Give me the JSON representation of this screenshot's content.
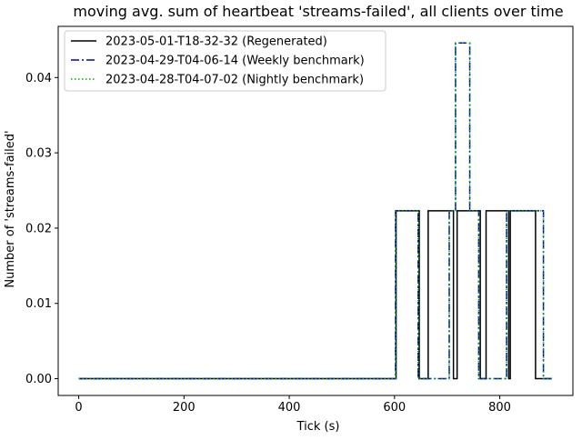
{
  "chart_data": {
    "type": "line",
    "title": "moving avg. sum of heartbeat 'streams-failed', all clients over time",
    "xlabel": "Tick (s)",
    "ylabel": "Number of 'streams-failed'",
    "xlim": [
      -39,
      939
    ],
    "ylim": [
      -0.00223,
      0.0468
    ],
    "x_ticks": [
      0,
      200,
      400,
      600,
      800
    ],
    "x_tick_labels": [
      "0",
      "200",
      "400",
      "600",
      "800"
    ],
    "y_ticks": [
      0.0,
      0.01,
      0.02,
      0.03,
      0.04
    ],
    "y_tick_labels": [
      "0.00",
      "0.01",
      "0.02",
      "0.03",
      "0.04"
    ],
    "grid": false,
    "legend_position": "top-left",
    "series": [
      {
        "name": "2023-05-01-T18-32-32 (Regenerated)",
        "color": "#000000",
        "dash": "solid",
        "step": "post",
        "x": [
          0,
          603,
          647,
          664,
          712,
          719,
          763,
          774,
          817,
          820,
          863,
          868,
          899
        ],
        "y": [
          0,
          0.0223,
          0,
          0.0223,
          0,
          0.0223,
          0,
          0.0223,
          0,
          0.0223,
          0.0223,
          0,
          0
        ]
      },
      {
        "name": "2023-04-29-T04-06-14 (Weekly benchmark)",
        "color": "#0000cc",
        "dash": "dashdot",
        "step": "post",
        "x": [
          0,
          602,
          645,
          704,
          716,
          743,
          760,
          813,
          835,
          883,
          899
        ],
        "y": [
          0,
          0.0223,
          0,
          0.0223,
          0.0446,
          0.0223,
          0,
          0.0223,
          0.0223,
          0,
          0
        ]
      },
      {
        "name": "2023-04-28-T04-07-02 (Nightly benchmark)",
        "color": "#00aa00",
        "dash": "dotted",
        "step": "post",
        "x": [
          0,
          602,
          645,
          704,
          716,
          743,
          760,
          813,
          835,
          883,
          899
        ],
        "y": [
          0,
          0.0223,
          0,
          0.0223,
          0.0446,
          0.0223,
          0,
          0.0223,
          0.0223,
          0,
          0
        ]
      }
    ]
  }
}
